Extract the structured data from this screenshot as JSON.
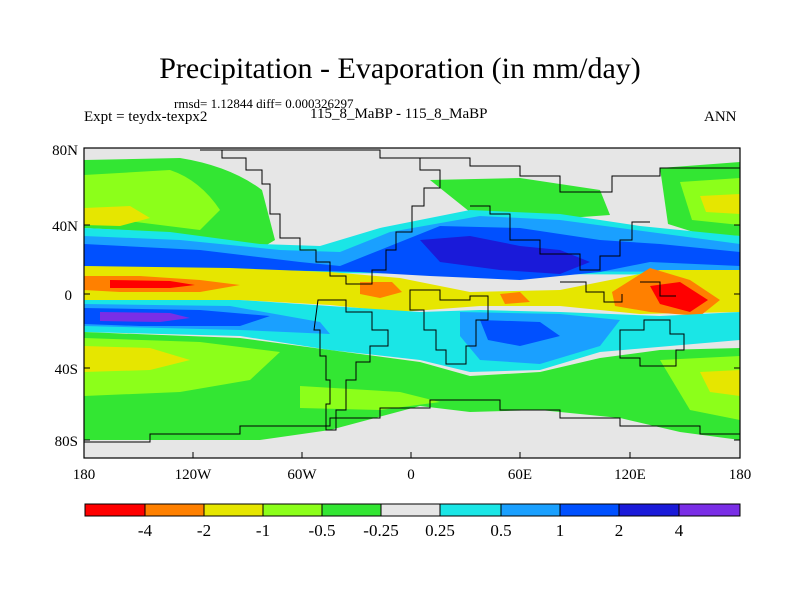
{
  "title": "Precipitation - Evaporation (in mm/day)",
  "stats_text": "rmsd= 1.12844 diff= 0.000326297",
  "experiment_label": "Expt = teydx-texpx2",
  "case_label": "115_8_MaBP - 115_8_MaBP",
  "season_label": "ANN",
  "y_axis_labels": [
    "80N",
    "40N",
    "0",
    "40S",
    "80S"
  ],
  "x_axis_labels": [
    "180",
    "120W",
    "60W",
    "0",
    "60E",
    "120E",
    "180"
  ],
  "colorbar": {
    "tick_labels": [
      "-4",
      "-2",
      "-1",
      "-0.5",
      "-0.25",
      "0.25",
      "0.5",
      "1",
      "2",
      "4"
    ],
    "colors": [
      "#ff0000",
      "#ff8000",
      "#e6e600",
      "#8cff1a",
      "#33e633",
      "#e6e6e6",
      "#1ae6e6",
      "#1aa0ff",
      "#0050ff",
      "#1a1ad9",
      "#7a2ee6"
    ]
  }
}
